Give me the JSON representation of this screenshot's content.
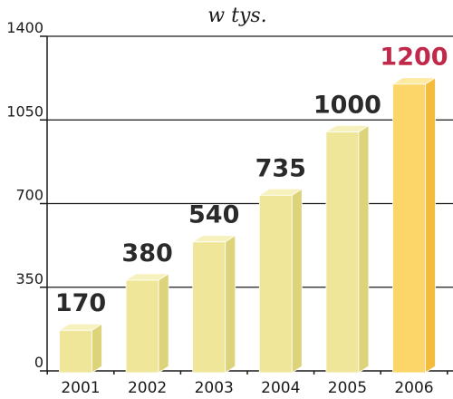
{
  "chart_data": {
    "type": "bar",
    "title": "",
    "subtitle": "w tys.",
    "xlabel": "",
    "ylabel": "",
    "categories": [
      "2001",
      "2002",
      "2003",
      "2004",
      "2005",
      "2006"
    ],
    "values": [
      170,
      380,
      540,
      735,
      1000,
      1200
    ],
    "value_labels": [
      "170",
      "380",
      "540",
      "735",
      "1000",
      "1200"
    ],
    "yticks": [
      0,
      350,
      700,
      1050,
      1400
    ],
    "ytick_labels": [
      "0",
      "350",
      "700",
      "1050",
      "1400"
    ],
    "ylim": [
      0,
      1400
    ],
    "grid": true,
    "legend": "none",
    "colors": {
      "bar_front": "#efe69a",
      "bar_top": "#f7f1bd",
      "bar_side": "#ddd37a",
      "highlight_front": "#fdd66a",
      "highlight_top": "#fdeaa3",
      "highlight_side": "#f4bc3c",
      "label": "#2a2a2a",
      "highlight_label": "#c0294a"
    },
    "highlight_index": 5
  }
}
